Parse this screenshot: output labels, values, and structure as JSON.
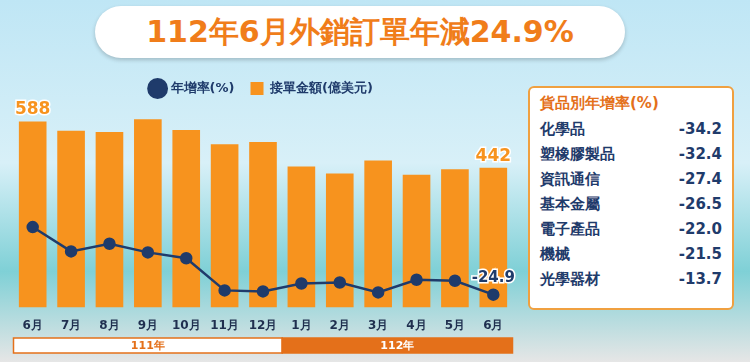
{
  "chart_data": {
    "type": "bar",
    "title": "112年6月外銷訂單年減24.9%",
    "categories": [
      "6月",
      "7月",
      "8月",
      "9月",
      "10月",
      "11月",
      "12月",
      "1月",
      "2月",
      "3月",
      "4月",
      "5月",
      "6月"
    ],
    "series": [
      {
        "name": "接單金額(億美元)",
        "type": "bar",
        "color": "#f7931e",
        "values": [
          588,
          559,
          555,
          595,
          561,
          516,
          523,
          446,
          424,
          465,
          420,
          437,
          442
        ],
        "value_labels": [
          "588",
          null,
          null,
          null,
          null,
          null,
          null,
          null,
          null,
          null,
          null,
          null,
          "442"
        ],
        "data_labels": true
      },
      {
        "name": "年增率(%)",
        "type": "line",
        "color": "#1f3b6b",
        "marker": "circle",
        "line_style": "solid",
        "axis": "y2",
        "values": [
          1.8,
          -7.8,
          -4.8,
          -8.2,
          -10.5,
          -23.2,
          -23.6,
          -20.5,
          -20.1,
          -24.0,
          -19.0,
          -19.4,
          -24.9
        ],
        "value_labels": [
          null,
          null,
          null,
          null,
          null,
          null,
          null,
          null,
          null,
          null,
          null,
          null,
          "-24.9"
        ],
        "data_labels": true
      }
    ],
    "ylim": [
      0,
      640
    ],
    "yticks": [
      0,
      640
    ],
    "y2lim": [
      -30,
      50
    ],
    "y2ticks": [
      -30,
      50
    ],
    "grid": false,
    "legend": "top",
    "tick_labels": "x",
    "year_groups": [
      {
        "label": "111年",
        "count": 7
      },
      {
        "label": "112年",
        "count": 6
      }
    ]
  },
  "side_panel": {
    "title": "貨品別年增率(%)",
    "rows": [
      {
        "label": "化學品",
        "value": "-34.2"
      },
      {
        "label": "塑橡膠製品",
        "value": "-32.4"
      },
      {
        "label": "資訊通信",
        "value": "-27.4"
      },
      {
        "label": "基本金屬",
        "value": "-26.5"
      },
      {
        "label": "電子產品",
        "value": "-22.0"
      },
      {
        "label": "機械",
        "value": "-21.5"
      },
      {
        "label": "光學器材",
        "value": "-13.7"
      }
    ]
  }
}
